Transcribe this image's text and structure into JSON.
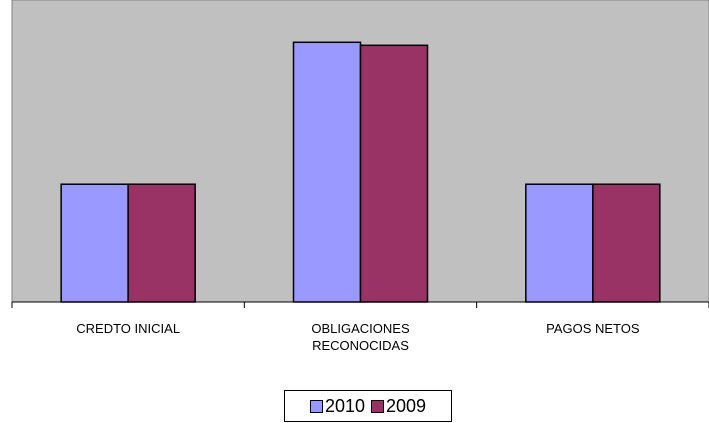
{
  "chart_data": {
    "type": "bar",
    "categories": [
      [
        "CREDTO INICIAL"
      ],
      [
        "OBLIGACIONES",
        "RECONOCIDAS"
      ],
      [
        "PAGOS NETOS"
      ]
    ],
    "series": [
      {
        "name": "2010",
        "color": "#9999FF",
        "values": [
          39,
          86,
          39
        ]
      },
      {
        "name": "2009",
        "color": "#993366",
        "values": [
          39,
          85,
          39
        ]
      }
    ],
    "ylim": [
      0,
      100
    ],
    "grid": false,
    "plot_background": "#C0C0C0",
    "legend": "bottom"
  }
}
